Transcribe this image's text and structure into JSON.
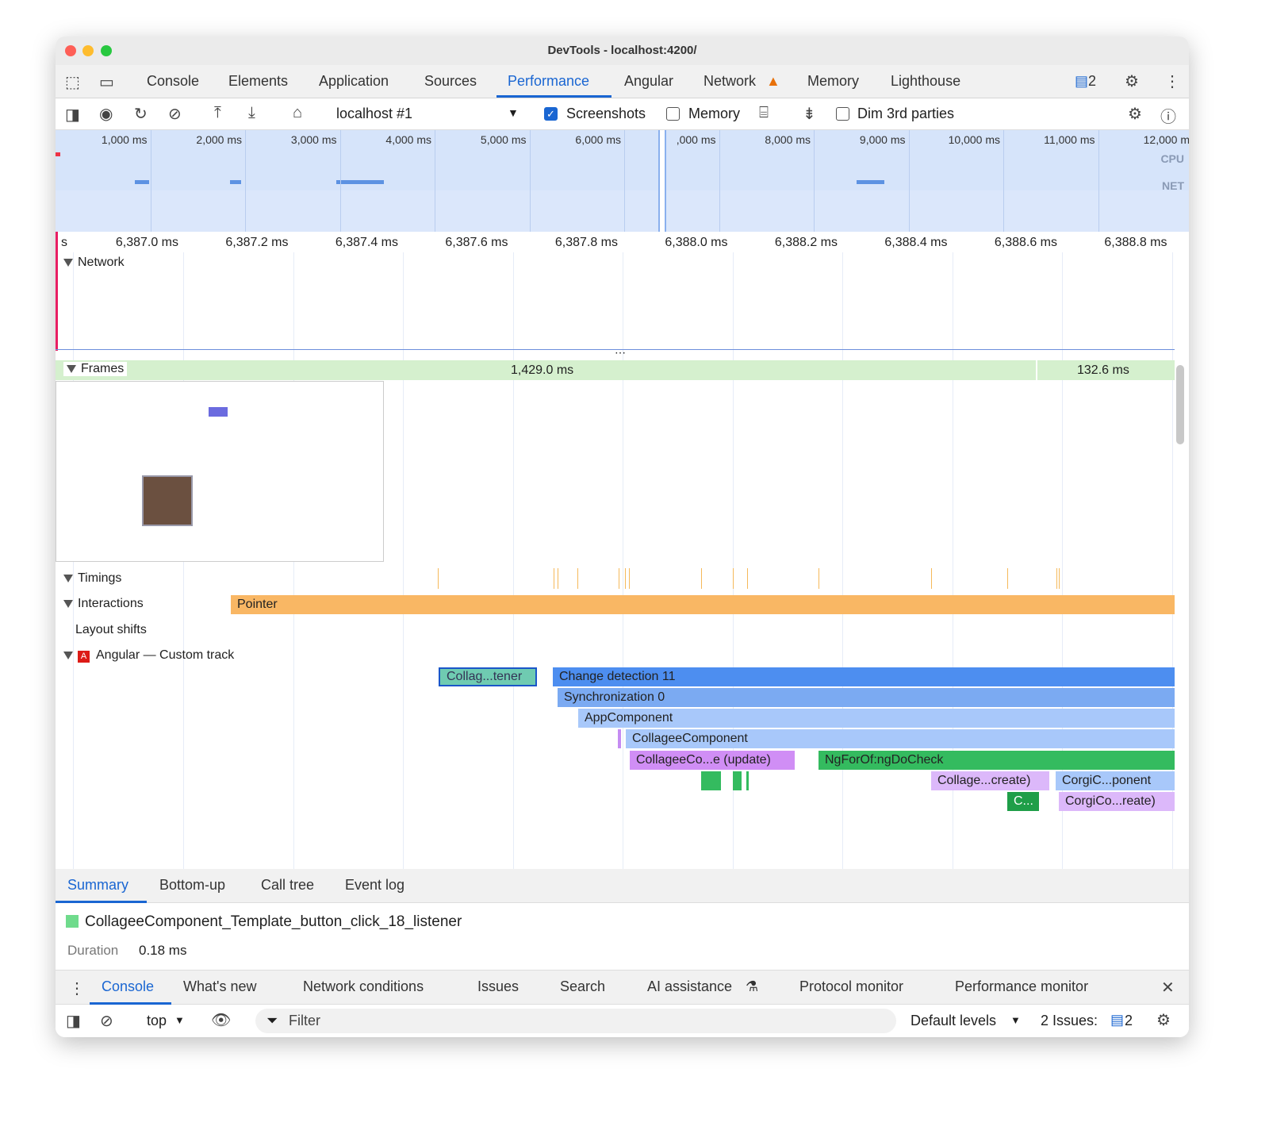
{
  "window": {
    "title": "DevTools - localhost:4200/"
  },
  "tabs": [
    {
      "label": "Console"
    },
    {
      "label": "Elements"
    },
    {
      "label": "Application"
    },
    {
      "label": "Sources"
    },
    {
      "label": "Performance"
    },
    {
      "label": "Angular"
    },
    {
      "label": "Network"
    },
    {
      "label": "Memory"
    },
    {
      "label": "Lighthouse"
    }
  ],
  "active_tab": "Performance",
  "issues_count": "2",
  "toolbar": {
    "target": "localhost #1",
    "screenshots_label": "Screenshots",
    "screenshots_checked": true,
    "memory_label": "Memory",
    "memory_checked": false,
    "dim_label": "Dim 3rd parties",
    "dim_checked": false
  },
  "overview": {
    "ticks": [
      "1,000 ms",
      "2,000 ms",
      "3,000 ms",
      "4,000 ms",
      "5,000 ms",
      "6,000 ms",
      ",000 ms",
      "8,000 ms",
      "9,000 ms",
      "10,000 ms",
      "11,000 ms",
      "12,000 m"
    ],
    "cpu_label": "CPU",
    "net_label": "NET"
  },
  "ruler": {
    "first": "s",
    "ticks": [
      "6,387.0 ms",
      "6,387.2 ms",
      "6,387.4 ms",
      "6,387.6 ms",
      "6,387.8 ms",
      "6,388.0 ms",
      "6,388.2 ms",
      "6,388.4 ms",
      "6,388.6 ms",
      "6,388.8 ms"
    ]
  },
  "tracks": {
    "network": "Network",
    "frames": "Frames",
    "frame1": "1,429.0 ms",
    "frame2": "132.6 ms",
    "timings": "Timings",
    "interactions": "Interactions",
    "pointer": "Pointer",
    "layout_shifts": "Layout shifts",
    "angular": "Angular — Custom track"
  },
  "flame": [
    {
      "label": "Collag...tener",
      "color": "#6fcbb1"
    },
    {
      "label": "Change detection 11",
      "color": "#4d8ef0"
    },
    {
      "label": "Synchronization 0",
      "color": "#7baaf2"
    },
    {
      "label": "AppComponent",
      "color": "#a8c8fa"
    },
    {
      "label": "CollageeComponent",
      "color": "#a8c8fa"
    },
    {
      "label": "CollageeCo...e (update)",
      "color": "#d08ef5"
    },
    {
      "label": "NgForOf:ngDoCheck",
      "color": "#34bb5f"
    },
    {
      "label": "Collage...create)",
      "color": "#dcb8fa"
    },
    {
      "label": "CorgiC...ponent",
      "color": "#a8c8fa"
    },
    {
      "label": "C...",
      "color": "#1f9e48"
    },
    {
      "label": "CorgiCo...reate)",
      "color": "#dcb8fa"
    }
  ],
  "bottom_tabs": [
    {
      "label": "Summary"
    },
    {
      "label": "Bottom-up"
    },
    {
      "label": "Call tree"
    },
    {
      "label": "Event log"
    }
  ],
  "summary": {
    "title": "CollageeComponent_Template_button_click_18_listener",
    "duration_label": "Duration",
    "duration": "0.18 ms",
    "color": "#6fcbb1"
  },
  "drawer_tabs": [
    {
      "label": "Console"
    },
    {
      "label": "What's new"
    },
    {
      "label": "Network conditions"
    },
    {
      "label": "Issues"
    },
    {
      "label": "Search"
    },
    {
      "label": "AI assistance"
    },
    {
      "label": "Protocol monitor"
    },
    {
      "label": "Performance monitor"
    }
  ],
  "console": {
    "context": "top",
    "filter_placeholder": "Filter",
    "levels": "Default levels",
    "issues_label": "2 Issues:",
    "issues_count": "2"
  }
}
